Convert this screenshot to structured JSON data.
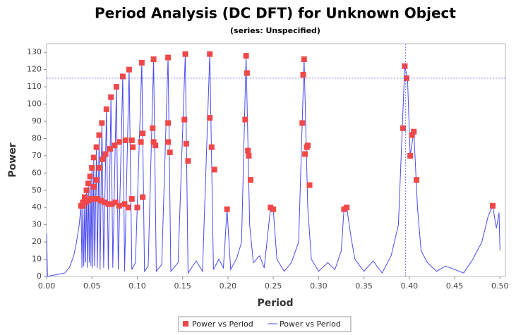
{
  "chart_data": {
    "type": "line",
    "title": "Period Analysis (DC DFT) for Unknown Object",
    "subtitle": "(series: Unspecified)",
    "x_label": "Period",
    "y_label": "Power",
    "xlim": [
      0,
      0.506
    ],
    "ylim": [
      0,
      135
    ],
    "xticks": [
      {
        "value": 0,
        "label": "0.00"
      },
      {
        "value": 0.05,
        "label": "0.05"
      },
      {
        "value": 0.1,
        "label": "0.10"
      },
      {
        "value": 0.15,
        "label": "0.15"
      },
      {
        "value": 0.2,
        "label": "0.20"
      },
      {
        "value": 0.25,
        "label": "0.25"
      },
      {
        "value": 0.3,
        "label": "0.30"
      },
      {
        "value": 0.35,
        "label": "0.35"
      },
      {
        "value": 0.4,
        "label": "0.40"
      },
      {
        "value": 0.45,
        "label": "0.45"
      },
      {
        "value": 0.5,
        "label": "0.50"
      }
    ],
    "yticks": [
      0,
      10,
      20,
      30,
      40,
      50,
      60,
      70,
      80,
      90,
      100,
      110,
      120,
      130
    ],
    "crosshair": {
      "x": 0.396,
      "y": 115,
      "color": "#5555ee"
    },
    "legend": "bottom",
    "series": [
      {
        "name": "Power vs Period",
        "type": "scatter",
        "color": "#f04848",
        "x": [
          0.038,
          0.04,
          0.042,
          0.044,
          0.046,
          0.048,
          0.05,
          0.052,
          0.055,
          0.058,
          0.061,
          0.066,
          0.071,
          0.077,
          0.084,
          0.091,
          0.105,
          0.118,
          0.134,
          0.153,
          0.18,
          0.22,
          0.284,
          0.395,
          0.04,
          0.043,
          0.046,
          0.049,
          0.052,
          0.056,
          0.06,
          0.064,
          0.068,
          0.072,
          0.076,
          0.08,
          0.086,
          0.09,
          0.094,
          0.1,
          0.106,
          0.052,
          0.055,
          0.058,
          0.062,
          0.065,
          0.07,
          0.075,
          0.08,
          0.087,
          0.094,
          0.104,
          0.095,
          0.106,
          0.117,
          0.118,
          0.12,
          0.134,
          0.134,
          0.136,
          0.152,
          0.154,
          0.156,
          0.18,
          0.182,
          0.185,
          0.219,
          0.221,
          0.222,
          0.223,
          0.225,
          0.199,
          0.247,
          0.25,
          0.282,
          0.283,
          0.285,
          0.287,
          0.288,
          0.29,
          0.328,
          0.331,
          0.393,
          0.397,
          0.401,
          0.403,
          0.405,
          0.408,
          0.492
        ],
        "values": [
          41,
          43,
          46,
          50,
          54,
          58,
          63,
          69,
          75,
          82,
          89,
          97,
          104,
          110,
          116,
          120,
          124,
          126,
          127,
          129,
          129,
          128,
          126,
          122,
          41,
          43,
          44,
          45,
          45,
          45,
          44,
          43,
          42,
          42,
          43,
          41,
          42,
          40,
          45,
          40,
          46,
          52,
          56,
          63,
          68,
          71,
          74,
          76,
          78,
          79,
          79,
          78,
          75,
          83,
          86,
          78,
          76,
          89,
          78,
          72,
          91,
          77,
          67,
          92,
          75,
          62,
          91,
          118,
          73,
          70,
          56,
          39,
          40,
          39,
          89,
          117,
          71,
          75,
          76,
          53,
          39,
          40,
          86,
          115,
          70,
          82,
          84,
          56,
          41
        ]
      },
      {
        "name": "Power vs Period",
        "type": "line",
        "color": "#4a4af0",
        "x": [
          0.0,
          0.001,
          0.01,
          0.02,
          0.025,
          0.03,
          0.033,
          0.036,
          0.038,
          0.039,
          0.04,
          0.041,
          0.042,
          0.043,
          0.044,
          0.045,
          0.046,
          0.047,
          0.048,
          0.049,
          0.05,
          0.051,
          0.052,
          0.053,
          0.055,
          0.056,
          0.058,
          0.059,
          0.061,
          0.063,
          0.066,
          0.068,
          0.071,
          0.073,
          0.077,
          0.079,
          0.084,
          0.086,
          0.091,
          0.094,
          0.098,
          0.105,
          0.108,
          0.112,
          0.118,
          0.121,
          0.127,
          0.134,
          0.137,
          0.145,
          0.153,
          0.156,
          0.165,
          0.172,
          0.18,
          0.184,
          0.19,
          0.195,
          0.199,
          0.203,
          0.21,
          0.215,
          0.22,
          0.224,
          0.228,
          0.235,
          0.24,
          0.247,
          0.25,
          0.254,
          0.262,
          0.27,
          0.278,
          0.284,
          0.288,
          0.292,
          0.3,
          0.31,
          0.318,
          0.325,
          0.328,
          0.331,
          0.336,
          0.34,
          0.35,
          0.36,
          0.37,
          0.38,
          0.388,
          0.395,
          0.398,
          0.401,
          0.405,
          0.409,
          0.413,
          0.42,
          0.43,
          0.44,
          0.45,
          0.46,
          0.47,
          0.48,
          0.487,
          0.492,
          0.496,
          0.499,
          0.5
        ],
        "values": [
          25,
          0,
          1,
          2,
          5,
          12,
          20,
          30,
          41,
          5,
          43,
          6,
          46,
          8,
          50,
          5,
          54,
          8,
          58,
          6,
          63,
          5,
          69,
          6,
          75,
          5,
          82,
          4,
          89,
          5,
          97,
          4,
          104,
          5,
          110,
          4,
          116,
          3,
          120,
          4,
          8,
          124,
          3,
          6,
          126,
          3,
          7,
          127,
          3,
          8,
          129,
          2,
          9,
          3,
          129,
          4,
          10,
          5,
          39,
          4,
          11,
          20,
          128,
          30,
          8,
          12,
          5,
          40,
          39,
          10,
          3,
          8,
          20,
          126,
          40,
          10,
          3,
          8,
          4,
          15,
          39,
          40,
          22,
          10,
          3,
          9,
          2,
          12,
          30,
          122,
          115,
          70,
          84,
          40,
          15,
          8,
          3,
          6,
          4,
          2,
          10,
          20,
          35,
          41,
          28,
          37,
          15
        ]
      }
    ]
  }
}
